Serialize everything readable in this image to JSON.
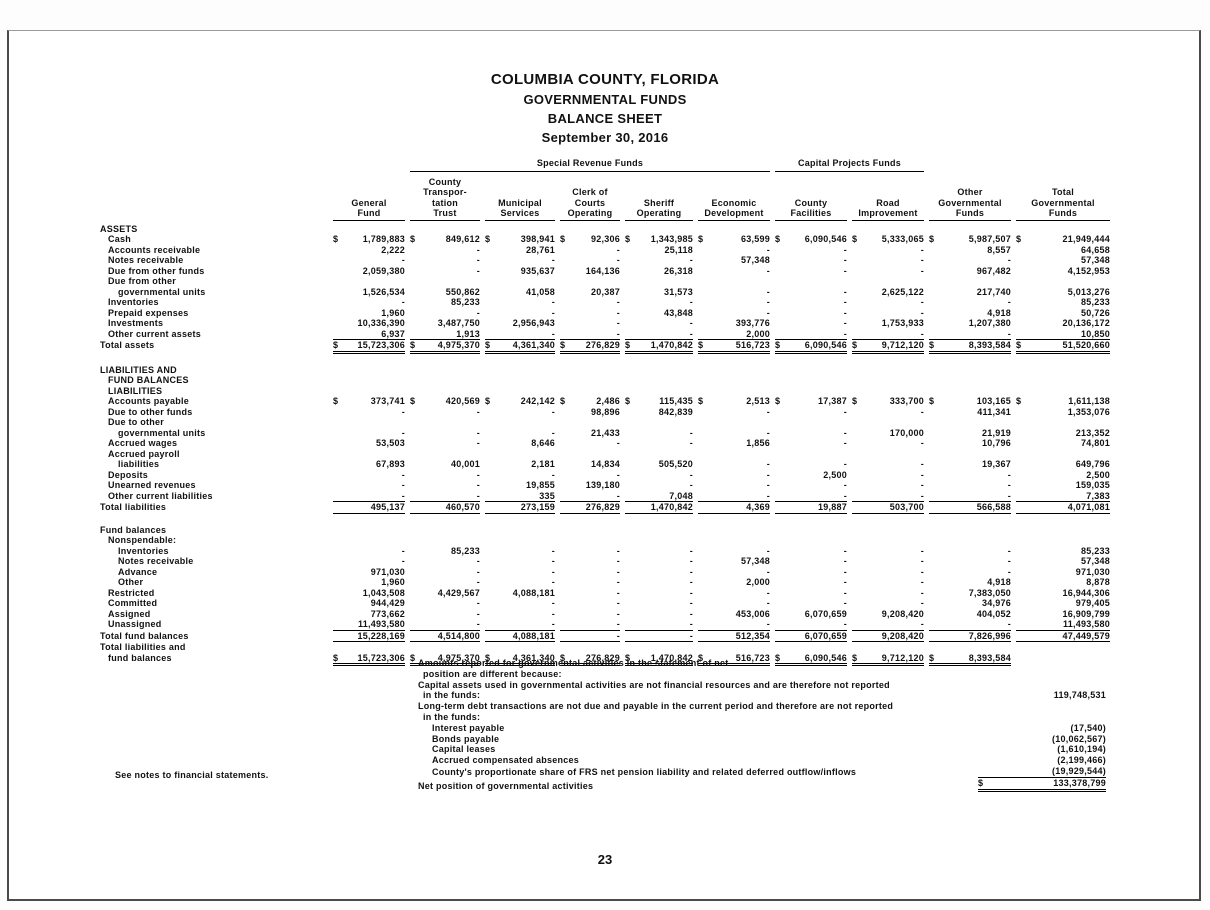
{
  "page": {
    "title_lines": [
      "COLUMBIA COUNTY, FLORIDA",
      "GOVERNMENTAL FUNDS",
      "BALANCE SHEET",
      "September 30, 2016"
    ],
    "footer_note": "See notes to financial statements.",
    "page_number": "23"
  },
  "table": {
    "group_headers": [
      {
        "label": "Special Revenue Funds",
        "span_start": 1,
        "span_count": 5
      },
      {
        "label": "Capital Projects Funds",
        "span_start": 6,
        "span_count": 2
      }
    ],
    "columns": [
      {
        "id": "general",
        "lines": [
          "General",
          "Fund"
        ]
      },
      {
        "id": "county-transportation-trust",
        "lines": [
          "County",
          "Transpor-",
          "tation",
          "Trust"
        ]
      },
      {
        "id": "municipal-services",
        "lines": [
          "Municipal",
          "Services"
        ]
      },
      {
        "id": "clerk-of-courts",
        "lines": [
          "Clerk of",
          "Courts",
          "Operating"
        ]
      },
      {
        "id": "sheriff",
        "lines": [
          "Sheriff",
          "Operating"
        ]
      },
      {
        "id": "economic-development",
        "lines": [
          "Economic",
          "Development"
        ]
      },
      {
        "id": "county-facilities",
        "lines": [
          "County",
          "Facilities"
        ]
      },
      {
        "id": "road-improvement",
        "lines": [
          "Road",
          "Improvement"
        ]
      },
      {
        "id": "other-governmental",
        "lines": [
          "Other",
          "Governmental",
          "Funds"
        ]
      },
      {
        "id": "total-governmental",
        "lines": [
          "Total",
          "Governmental",
          "Funds"
        ]
      }
    ],
    "sections": [
      {
        "name": "assets",
        "headings": [
          {
            "text": "ASSETS",
            "indent": 0
          }
        ],
        "rows": [
          {
            "label": "Cash",
            "indent": 1,
            "dollar": true,
            "values": [
              "1,789,883",
              "849,612",
              "398,941",
              "92,306",
              "1,343,985",
              "63,599",
              "6,090,546",
              "5,333,065",
              "5,987,507",
              "21,949,444"
            ]
          },
          {
            "label": "Accounts receivable",
            "indent": 1,
            "values": [
              "2,222",
              "-",
              "28,761",
              "-",
              "25,118",
              "-",
              "-",
              "-",
              "8,557",
              "64,658"
            ]
          },
          {
            "label": "Notes receivable",
            "indent": 1,
            "values": [
              "-",
              "-",
              "-",
              "-",
              "-",
              "57,348",
              "-",
              "-",
              "-",
              "57,348"
            ]
          },
          {
            "label": "Due from other funds",
            "indent": 1,
            "values": [
              "2,059,380",
              "-",
              "935,637",
              "164,136",
              "26,318",
              "-",
              "-",
              "-",
              "967,482",
              "4,152,953"
            ]
          },
          {
            "label": "Due from other",
            "indent": 1,
            "labelOnly": true
          },
          {
            "label": "governmental units",
            "indent": 2,
            "values": [
              "1,526,534",
              "550,862",
              "41,058",
              "20,387",
              "31,573",
              "-",
              "-",
              "2,625,122",
              "217,740",
              "5,013,276"
            ]
          },
          {
            "label": "Inventories",
            "indent": 1,
            "values": [
              "-",
              "85,233",
              "-",
              "-",
              "-",
              "-",
              "-",
              "-",
              "-",
              "85,233"
            ]
          },
          {
            "label": "Prepaid expenses",
            "indent": 1,
            "values": [
              "1,960",
              "-",
              "-",
              "-",
              "43,848",
              "-",
              "-",
              "-",
              "4,918",
              "50,726"
            ]
          },
          {
            "label": "Investments",
            "indent": 1,
            "values": [
              "10,336,390",
              "3,487,750",
              "2,956,943",
              "-",
              "-",
              "393,776",
              "-",
              "1,753,933",
              "1,207,380",
              "20,136,172"
            ]
          },
          {
            "label": "Other current assets",
            "indent": 1,
            "rule": "below",
            "values": [
              "6,937",
              "1,913",
              "-",
              "-",
              "-",
              "2,000",
              "-",
              "-",
              "-",
              "10,850"
            ]
          },
          {
            "label": "Total assets",
            "indent": 0,
            "dollar": true,
            "rule": "double",
            "values": [
              "15,723,306",
              "4,975,370",
              "4,361,340",
              "276,829",
              "1,470,842",
              "516,723",
              "6,090,546",
              "9,712,120",
              "8,393,584",
              "51,520,660"
            ]
          }
        ]
      },
      {
        "name": "liabilities",
        "headings": [
          {
            "text": "LIABILITIES AND",
            "indent": 0
          },
          {
            "text": "FUND BALANCES",
            "indent": 1
          },
          {
            "text": "LIABILITIES",
            "indent": 1
          }
        ],
        "rows": [
          {
            "label": "Accounts payable",
            "indent": 1,
            "dollar": true,
            "values": [
              "373,741",
              "420,569",
              "242,142",
              "2,486",
              "115,435",
              "2,513",
              "17,387",
              "333,700",
              "103,165",
              "1,611,138"
            ]
          },
          {
            "label": "Due to other funds",
            "indent": 1,
            "values": [
              "-",
              "-",
              "-",
              "98,896",
              "842,839",
              "-",
              "-",
              "-",
              "411,341",
              "1,353,076"
            ]
          },
          {
            "label": "Due to other",
            "indent": 1,
            "labelOnly": true
          },
          {
            "label": "governmental units",
            "indent": 2,
            "values": [
              "-",
              "-",
              "-",
              "21,433",
              "-",
              "-",
              "-",
              "170,000",
              "21,919",
              "213,352"
            ]
          },
          {
            "label": "Accrued wages",
            "indent": 1,
            "values": [
              "53,503",
              "-",
              "8,646",
              "-",
              "-",
              "1,856",
              "-",
              "-",
              "10,796",
              "74,801"
            ]
          },
          {
            "label": "Accrued payroll",
            "indent": 1,
            "labelOnly": true
          },
          {
            "label": "liabilities",
            "indent": 2,
            "values": [
              "67,893",
              "40,001",
              "2,181",
              "14,834",
              "505,520",
              "-",
              "-",
              "-",
              "19,367",
              "649,796"
            ]
          },
          {
            "label": "Deposits",
            "indent": 1,
            "values": [
              "-",
              "-",
              "-",
              "-",
              "-",
              "-",
              "2,500",
              "-",
              "-",
              "2,500"
            ]
          },
          {
            "label": "Unearned revenues",
            "indent": 1,
            "values": [
              "-",
              "-",
              "19,855",
              "139,180",
              "-",
              "-",
              "-",
              "-",
              "-",
              "159,035"
            ]
          },
          {
            "label": "Other current liabilities",
            "indent": 1,
            "rule": "below",
            "values": [
              "-",
              "-",
              "335",
              "-",
              "7,048",
              "-",
              "-",
              "-",
              "-",
              "7,383"
            ]
          },
          {
            "label": "Total liabilities",
            "indent": 0,
            "rule": "below",
            "values": [
              "495,137",
              "460,570",
              "273,159",
              "276,829",
              "1,470,842",
              "4,369",
              "19,887",
              "503,700",
              "566,588",
              "4,071,081"
            ]
          }
        ]
      },
      {
        "name": "fund-balances",
        "headings": [
          {
            "text": "Fund balances",
            "indent": 0
          },
          {
            "text": "Nonspendable:",
            "indent": 1
          }
        ],
        "rows": [
          {
            "label": "Inventories",
            "indent": 2,
            "values": [
              "-",
              "85,233",
              "-",
              "-",
              "-",
              "-",
              "-",
              "-",
              "-",
              "85,233"
            ]
          },
          {
            "label": "Notes receivable",
            "indent": 2,
            "values": [
              "-",
              "-",
              "-",
              "-",
              "-",
              "57,348",
              "-",
              "-",
              "-",
              "57,348"
            ]
          },
          {
            "label": "Advance",
            "indent": 2,
            "values": [
              "971,030",
              "-",
              "-",
              "-",
              "-",
              "-",
              "-",
              "-",
              "-",
              "971,030"
            ]
          },
          {
            "label": "Other",
            "indent": 2,
            "values": [
              "1,960",
              "-",
              "-",
              "-",
              "-",
              "2,000",
              "-",
              "-",
              "4,918",
              "8,878"
            ]
          },
          {
            "label": "Restricted",
            "indent": 1,
            "values": [
              "1,043,508",
              "4,429,567",
              "4,088,181",
              "-",
              "-",
              "-",
              "-",
              "-",
              "7,383,050",
              "16,944,306"
            ]
          },
          {
            "label": "Committed",
            "indent": 1,
            "values": [
              "944,429",
              "-",
              "-",
              "-",
              "-",
              "-",
              "-",
              "-",
              "34,976",
              "979,405"
            ]
          },
          {
            "label": "Assigned",
            "indent": 1,
            "values": [
              "773,662",
              "-",
              "-",
              "-",
              "-",
              "453,006",
              "6,070,659",
              "9,208,420",
              "404,052",
              "16,909,799"
            ]
          },
          {
            "label": "Unassigned",
            "indent": 1,
            "rule": "below",
            "values": [
              "11,493,580",
              "-",
              "-",
              "-",
              "-",
              "-",
              "-",
              "-",
              "-",
              "11,493,580"
            ]
          },
          {
            "label": "Total fund balances",
            "indent": 0,
            "rule": "below",
            "values": [
              "15,228,169",
              "4,514,800",
              "4,088,181",
              "-",
              "-",
              "512,354",
              "6,070,659",
              "9,208,420",
              "7,826,996",
              "47,449,579"
            ]
          },
          {
            "label": "Total liabilities and",
            "indent": 0,
            "labelOnly": true
          },
          {
            "label": "fund balances",
            "indent": 1,
            "dollar": true,
            "rule": "double",
            "values": [
              "15,723,306",
              "4,975,370",
              "4,361,340",
              "276,829",
              "1,470,842",
              "516,723",
              "6,090,546",
              "9,712,120",
              "8,393,584",
              ""
            ]
          }
        ]
      }
    ]
  },
  "reconciliation": {
    "intro": [
      "Amounts reported for governmental activities in the statement of net",
      "position are different because:"
    ],
    "items": [
      {
        "lines": [
          "Capital assets used in governmental activities are not financial resources  and are therefore not reported",
          "in the funds:"
        ],
        "indent": 0,
        "value": "119,748,531"
      },
      {
        "lines": [
          "Long-term debt transactions are not due and payable in the current period and therefore are not reported",
          "in the funds:"
        ],
        "indent": 0,
        "value": ""
      },
      {
        "lines": [
          "Interest payable"
        ],
        "indent": 1,
        "value": "(17,540)"
      },
      {
        "lines": [
          "Bonds payable"
        ],
        "indent": 1,
        "value": "(10,062,567)"
      },
      {
        "lines": [
          "Capital leases"
        ],
        "indent": 1,
        "value": "(1,610,194)"
      },
      {
        "lines": [
          "Accrued compensated absences"
        ],
        "indent": 1,
        "value": "(2,199,466)"
      },
      {
        "lines": [
          "County's proportionate share of FRS net pension liability and related deferred outflow/inflows"
        ],
        "indent": 1,
        "value": "(19,929,544)",
        "rule": "below"
      },
      {
        "lines": [
          "Net position of governmental activities"
        ],
        "indent": 0,
        "value": "133,378,799",
        "dollar": true,
        "rule": "double"
      }
    ]
  }
}
